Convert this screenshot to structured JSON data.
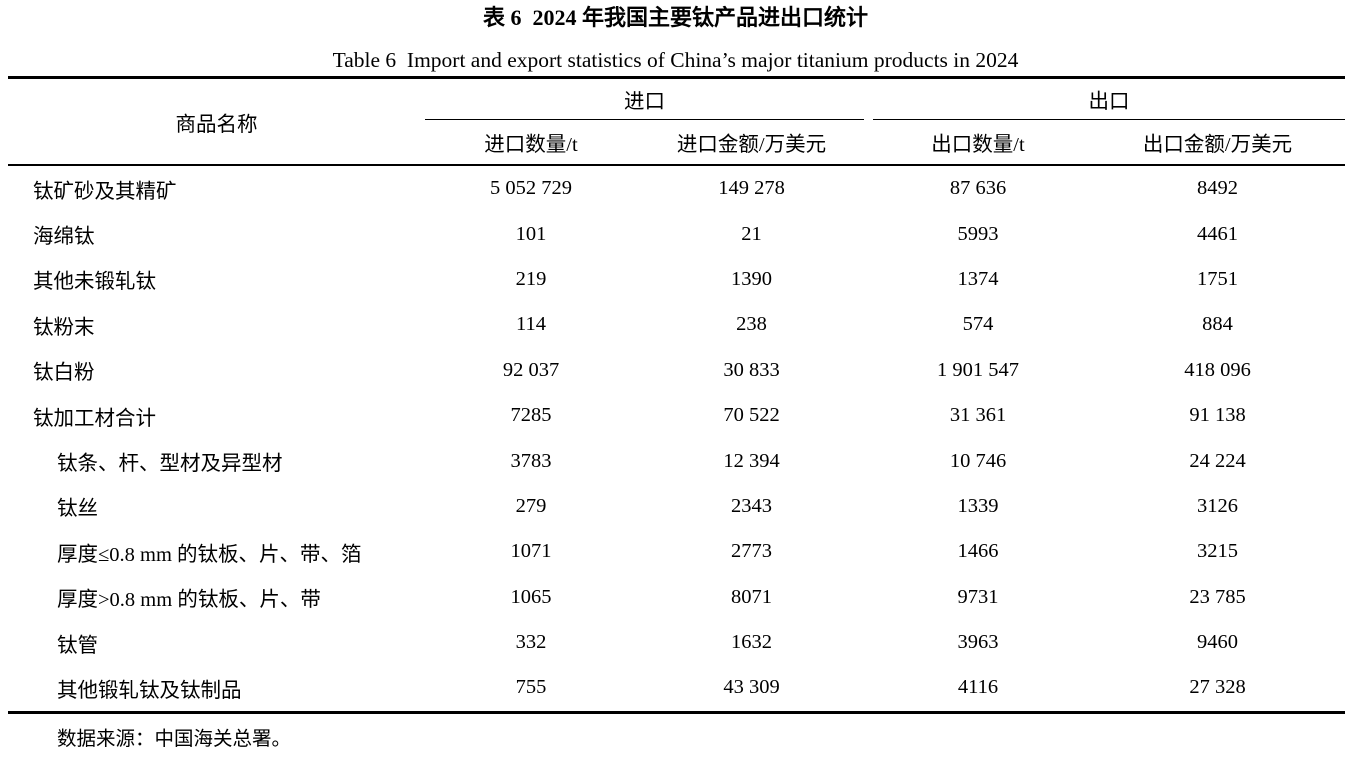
{
  "page": {
    "title_cn": "表 6  2024 年我国主要钛产品进出口统计",
    "title_en": "Table 6  Import and export statistics of China’s major titanium products in 2024",
    "source_note": "数据来源：中国海关总署。"
  },
  "colors": {
    "text": "#000000",
    "background": "#ffffff",
    "rule": "#000000"
  },
  "table": {
    "header": {
      "product": "商品名称",
      "import_group": "进口",
      "export_group": "出口",
      "columns": [
        "进口数量/t",
        "进口金额/万美元",
        "出口数量/t",
        "出口金额/万美元"
      ]
    },
    "rows": [
      {
        "name": "钛矿砂及其精矿",
        "indent": false,
        "values": [
          "5 052 729",
          "149 278",
          "87 636",
          "8492"
        ]
      },
      {
        "name": "海绵钛",
        "indent": false,
        "values": [
          "101",
          "21",
          "5993",
          "4461"
        ]
      },
      {
        "name": "其他未锻轧钛",
        "indent": false,
        "values": [
          "219",
          "1390",
          "1374",
          "1751"
        ]
      },
      {
        "name": "钛粉末",
        "indent": false,
        "values": [
          "114",
          "238",
          "574",
          "884"
        ]
      },
      {
        "name": "钛白粉",
        "indent": false,
        "values": [
          "92 037",
          "30 833",
          "1 901 547",
          "418 096"
        ]
      },
      {
        "name": "钛加工材合计",
        "indent": false,
        "values": [
          "7285",
          "70 522",
          "31 361",
          "91 138"
        ]
      },
      {
        "name": "钛条、杆、型材及异型材",
        "indent": true,
        "values": [
          "3783",
          "12 394",
          "10 746",
          "24 224"
        ]
      },
      {
        "name": "钛丝",
        "indent": true,
        "values": [
          "279",
          "2343",
          "1339",
          "3126"
        ]
      },
      {
        "name": "厚度≤0.8 mm 的钛板、片、带、箔",
        "indent": true,
        "values": [
          "1071",
          "2773",
          "1466",
          "3215"
        ]
      },
      {
        "name": "厚度>0.8 mm 的钛板、片、带",
        "indent": true,
        "values": [
          "1065",
          "8071",
          "9731",
          "23 785"
        ]
      },
      {
        "name": "钛管",
        "indent": true,
        "values": [
          "332",
          "1632",
          "3963",
          "9460"
        ]
      },
      {
        "name": "其他锻轧钛及钛制品",
        "indent": true,
        "values": [
          "755",
          "43 309",
          "4116",
          "27 328"
        ]
      }
    ]
  }
}
